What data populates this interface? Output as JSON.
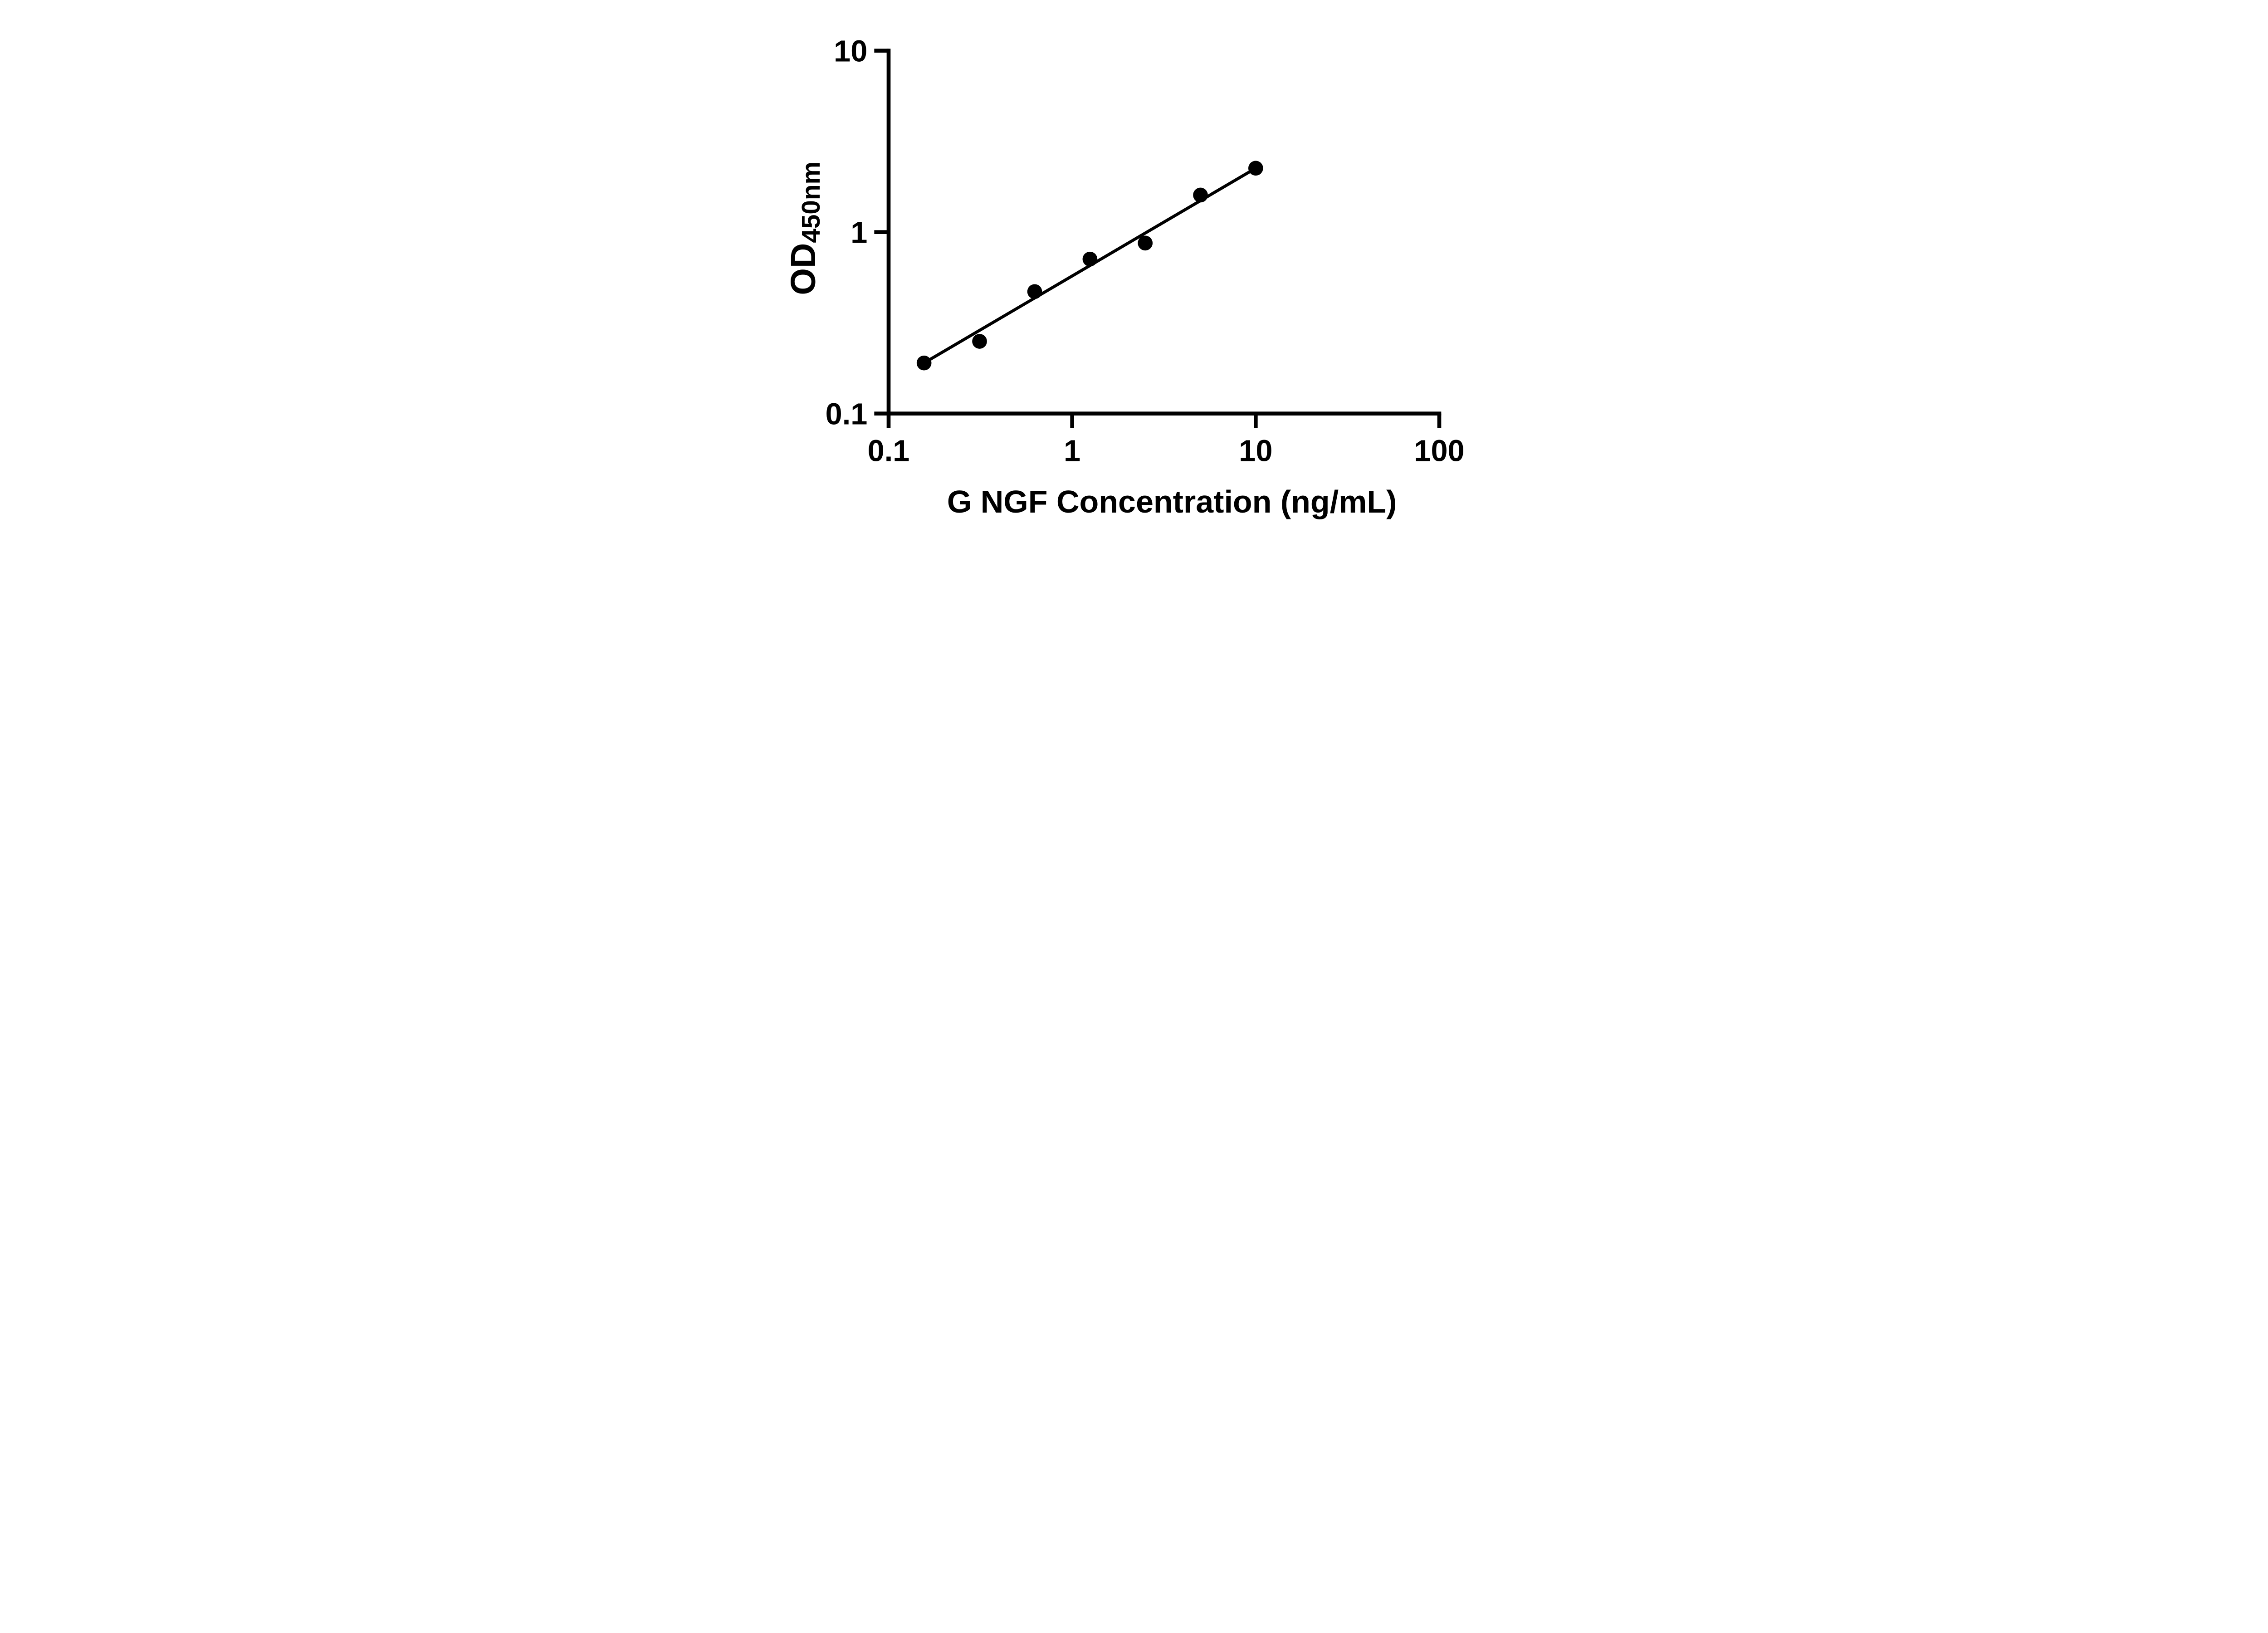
{
  "chart_data": {
    "type": "scatter",
    "title": "",
    "xlabel": "G NGF Concentration (ng/mL)",
    "ylabel": "OD450nm",
    "ylabel_base": "OD",
    "ylabel_subscript": "450nm",
    "x_scale": "log",
    "y_scale": "log",
    "xlim": [
      0.1,
      100
    ],
    "ylim": [
      0.1,
      10
    ],
    "x_ticks": [
      0.1,
      1,
      10,
      100
    ],
    "x_tick_labels": [
      "0.1",
      "1",
      "10",
      "100"
    ],
    "y_ticks": [
      0.1,
      1,
      10
    ],
    "y_tick_labels": [
      "0.1",
      "1",
      "10"
    ],
    "grid": false,
    "legend": false,
    "marker_color": "#000000",
    "line_color": "#000000",
    "background_color": "#ffffff",
    "points": [
      {
        "x": 0.156,
        "y": 0.19
      },
      {
        "x": 0.313,
        "y": 0.25
      },
      {
        "x": 0.625,
        "y": 0.47
      },
      {
        "x": 1.25,
        "y": 0.71
      },
      {
        "x": 2.5,
        "y": 0.87
      },
      {
        "x": 5,
        "y": 1.6
      },
      {
        "x": 10,
        "y": 2.25
      }
    ],
    "trend_line": {
      "style": "straight-in-loglog",
      "from": {
        "x": 0.156,
        "y": 0.19
      },
      "to": {
        "x": 10,
        "y": 2.25
      }
    }
  }
}
